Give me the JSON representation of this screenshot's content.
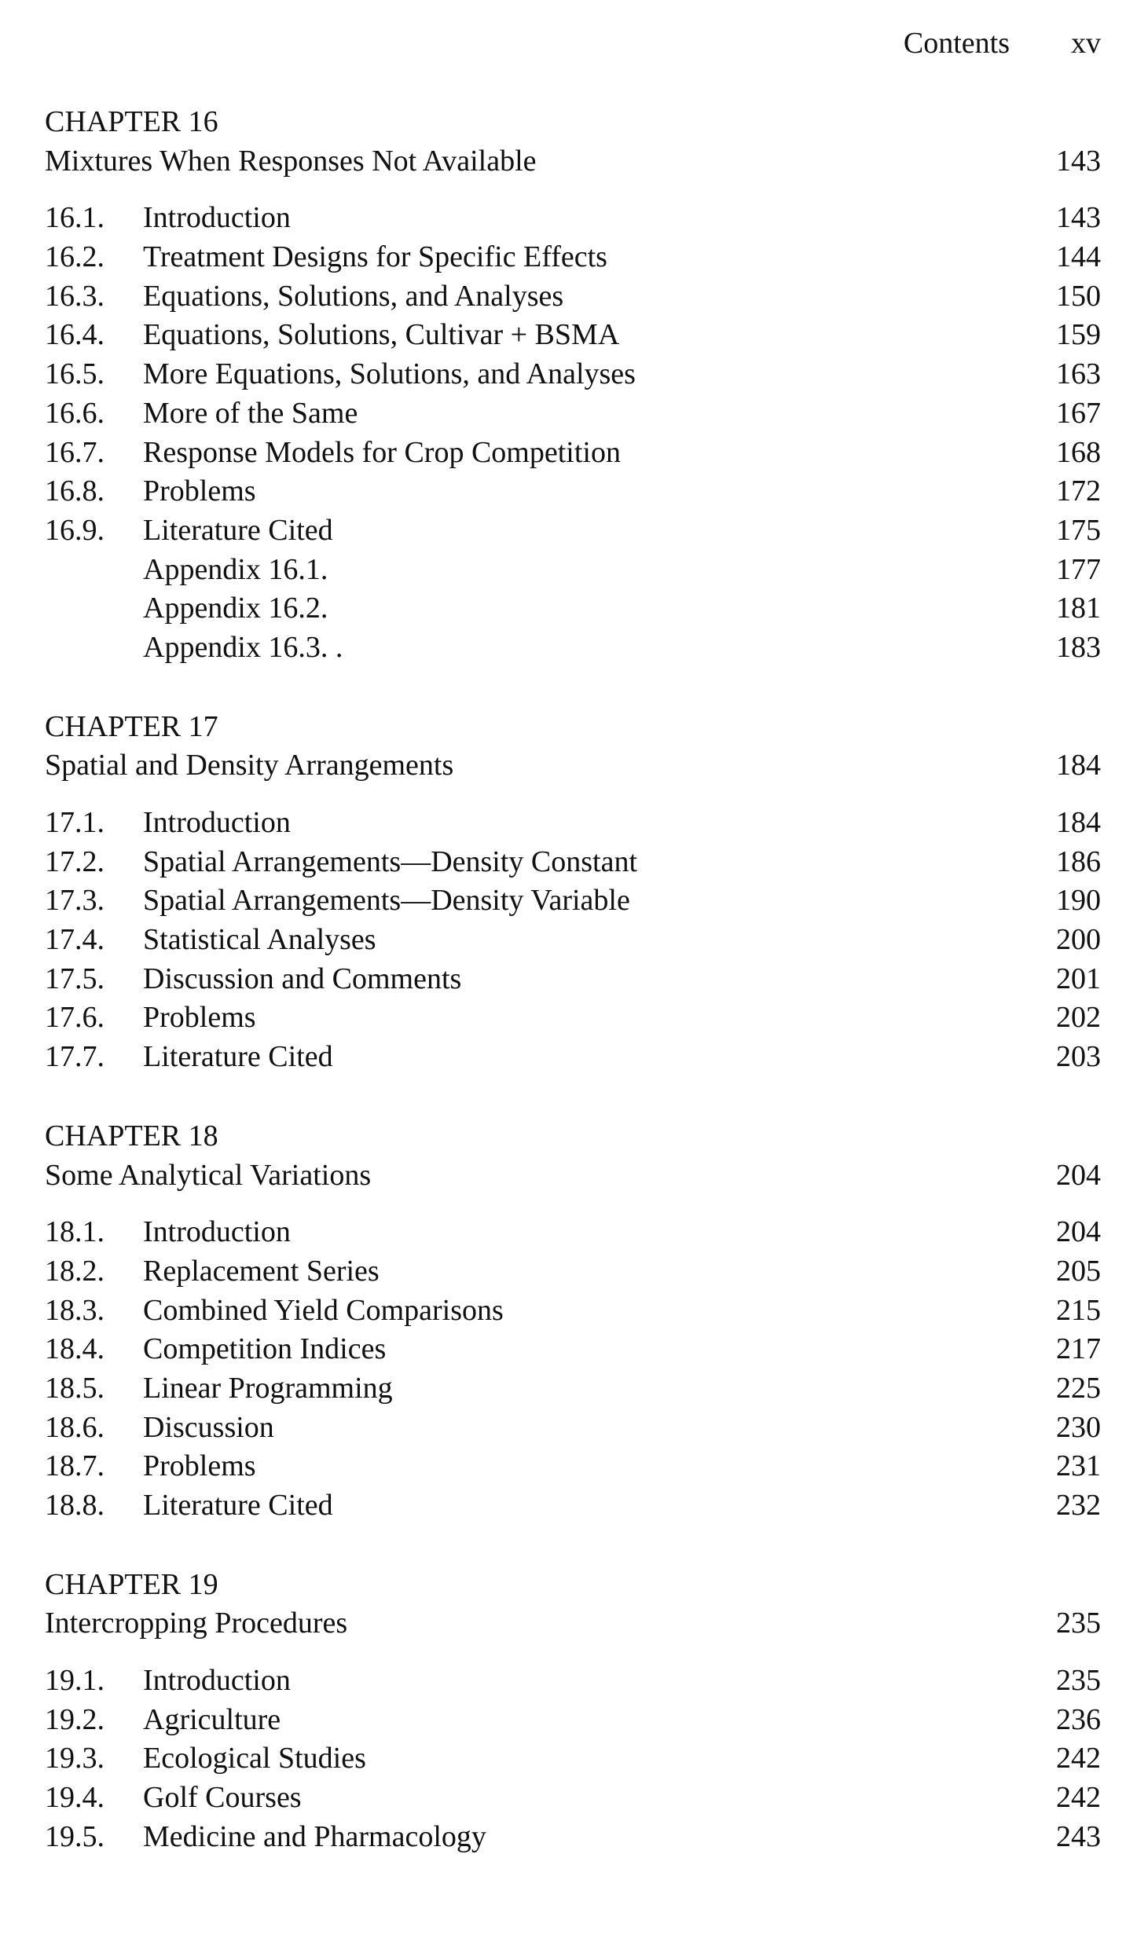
{
  "running_head": {
    "title": "Contents",
    "page": "xv"
  },
  "chapters": [
    {
      "label": "CHAPTER 16",
      "title": "Mixtures When Responses Not Available",
      "page": "143",
      "entries": [
        {
          "num": "16.1.",
          "title": "Introduction",
          "page": "143"
        },
        {
          "num": "16.2.",
          "title": "Treatment Designs for Specific Effects",
          "page": "144"
        },
        {
          "num": "16.3.",
          "title": "Equations, Solutions, and Analyses",
          "page": "150"
        },
        {
          "num": "16.4.",
          "title": "Equations, Solutions, Cultivar + BSMA",
          "page": "159"
        },
        {
          "num": "16.5.",
          "title": "More Equations, Solutions, and Analyses",
          "page": "163"
        },
        {
          "num": "16.6.",
          "title": "More of the Same",
          "page": "167"
        },
        {
          "num": "16.7.",
          "title": "Response Models for Crop Competition",
          "page": "168"
        },
        {
          "num": "16.8.",
          "title": "Problems",
          "page": "172"
        },
        {
          "num": "16.9.",
          "title": "Literature Cited",
          "page": "175"
        },
        {
          "num": "",
          "title": "Appendix 16.1.",
          "page": "177"
        },
        {
          "num": "",
          "title": "Appendix 16.2.",
          "page": "181"
        },
        {
          "num": "",
          "title": "Appendix 16.3. .",
          "page": "183"
        }
      ]
    },
    {
      "label": "CHAPTER 17",
      "title": "Spatial and Density Arrangements",
      "page": "184",
      "entries": [
        {
          "num": "17.1.",
          "title": "Introduction",
          "page": "184"
        },
        {
          "num": "17.2.",
          "title": "Spatial Arrangements—Density Constant",
          "page": "186"
        },
        {
          "num": "17.3.",
          "title": "Spatial Arrangements—Density Variable",
          "page": "190"
        },
        {
          "num": "17.4.",
          "title": "Statistical Analyses",
          "page": "200"
        },
        {
          "num": "17.5.",
          "title": "Discussion and Comments",
          "page": "201"
        },
        {
          "num": "17.6.",
          "title": "Problems",
          "page": "202"
        },
        {
          "num": "17.7.",
          "title": "Literature Cited",
          "page": "203"
        }
      ]
    },
    {
      "label": "CHAPTER 18",
      "title": "Some Analytical Variations",
      "page": "204",
      "entries": [
        {
          "num": "18.1.",
          "title": "Introduction",
          "page": "204"
        },
        {
          "num": "18.2.",
          "title": "Replacement Series",
          "page": "205"
        },
        {
          "num": "18.3.",
          "title": "Combined Yield Comparisons",
          "page": "215"
        },
        {
          "num": "18.4.",
          "title": "Competition Indices",
          "page": "217"
        },
        {
          "num": "18.5.",
          "title": "Linear Programming",
          "page": "225"
        },
        {
          "num": "18.6.",
          "title": "Discussion",
          "page": "230"
        },
        {
          "num": "18.7.",
          "title": "Problems",
          "page": "231"
        },
        {
          "num": "18.8.",
          "title": "Literature Cited",
          "page": "232"
        }
      ]
    },
    {
      "label": "CHAPTER 19",
      "title": "Intercropping Procedures",
      "page": "235",
      "entries": [
        {
          "num": "19.1.",
          "title": "Introduction",
          "page": "235"
        },
        {
          "num": "19.2.",
          "title": "Agriculture",
          "page": "236"
        },
        {
          "num": "19.3.",
          "title": "Ecological Studies",
          "page": "242"
        },
        {
          "num": "19.4.",
          "title": "Golf Courses",
          "page": "242"
        },
        {
          "num": "19.5.",
          "title": "Medicine and Pharmacology",
          "page": "243"
        }
      ]
    }
  ]
}
